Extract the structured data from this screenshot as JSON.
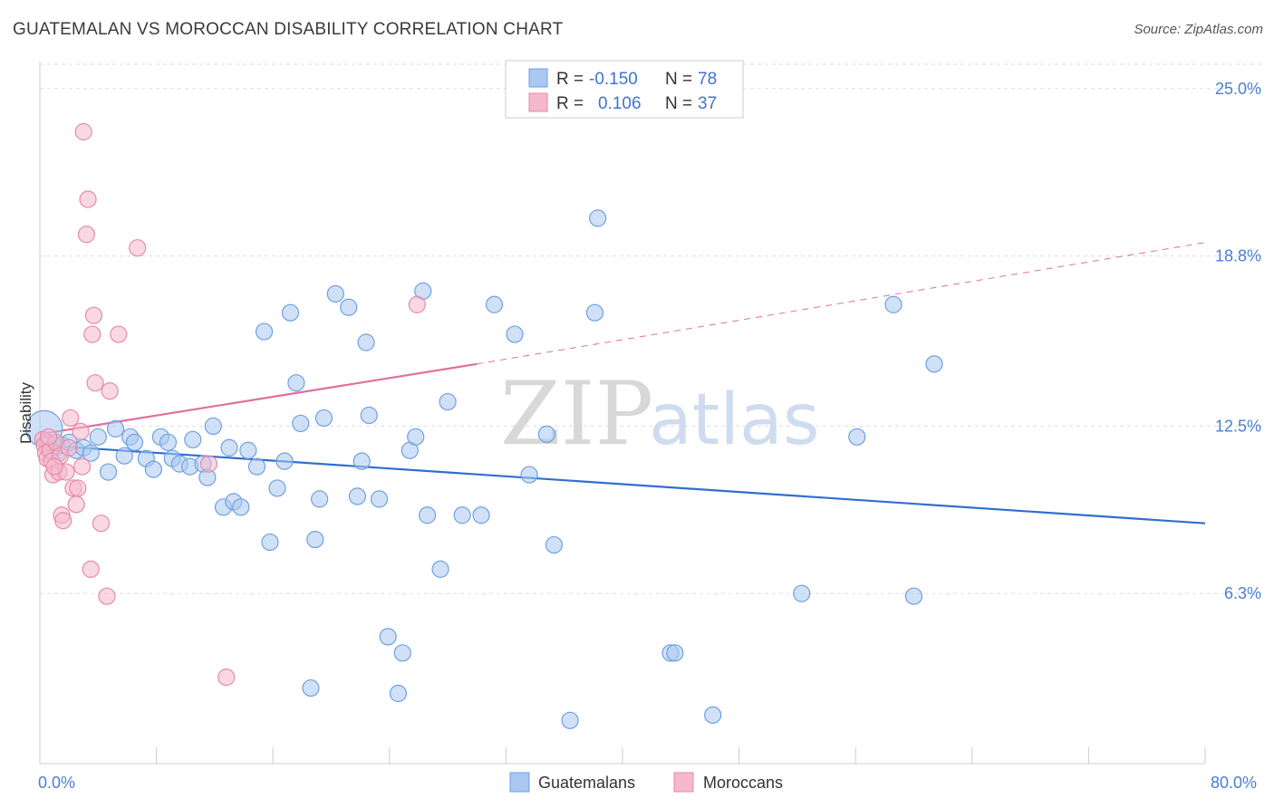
{
  "title": "GUATEMALAN VS MOROCCAN DISABILITY CORRELATION CHART",
  "source": "Source: ZipAtlas.com",
  "watermark": {
    "zip": "ZIP",
    "atlas": "atlas"
  },
  "legend_top": [
    {
      "r_label": "R =",
      "r_value": "-0.150",
      "n_label": "N =",
      "n_value": "78"
    },
    {
      "r_label": "R =",
      "r_value": "0.106",
      "n_label": "N =",
      "n_value": "37"
    }
  ],
  "legend_bottom": [
    "Guatemalans",
    "Moroccans"
  ],
  "colors": {
    "blue_fill": "#aac8f0",
    "blue_stroke": "#6f9fe0",
    "blue_line": "#2f6fcf",
    "pink_fill": "#f5b8cc",
    "pink_stroke": "#e58aa8",
    "pink_line": "#e0709a",
    "tick_label": "#4a7fd4",
    "grid": "#dddddd"
  },
  "chart_data": {
    "type": "scatter",
    "title": "GUATEMALAN VS MOROCCAN DISABILITY CORRELATION CHART",
    "xlabel": "",
    "ylabel": "Disability",
    "xlim": [
      0,
      80
    ],
    "ylim": [
      0,
      26
    ],
    "x_tick_labels": [
      "0.0%",
      "80.0%"
    ],
    "y_ticks": [
      6.3,
      12.5,
      18.8,
      25.0
    ],
    "y_tick_labels": [
      "6.3%",
      "12.5%",
      "18.8%",
      "25.0%"
    ],
    "grid": true,
    "legend_position": "top-center",
    "series": [
      {
        "name": "Guatemalans",
        "r": -0.15,
        "n": 78,
        "trend": {
          "x": [
            0,
            80
          ],
          "y": [
            11.8,
            8.9
          ],
          "style": "solid"
        },
        "points": [
          [
            0.3,
            12.4
          ],
          [
            0.5,
            11.9
          ],
          [
            0.8,
            11.6
          ],
          [
            1.0,
            11.8
          ],
          [
            1.3,
            11.5
          ],
          [
            1.5,
            11.8
          ],
          [
            2.0,
            11.9
          ],
          [
            2.5,
            11.6
          ],
          [
            3.0,
            11.7
          ],
          [
            3.5,
            11.5
          ],
          [
            4.0,
            12.1
          ],
          [
            4.7,
            10.8
          ],
          [
            5.2,
            12.4
          ],
          [
            5.8,
            11.4
          ],
          [
            6.2,
            12.1
          ],
          [
            6.5,
            11.9
          ],
          [
            7.3,
            11.3
          ],
          [
            7.8,
            10.9
          ],
          [
            8.3,
            12.1
          ],
          [
            8.8,
            11.9
          ],
          [
            9.1,
            11.3
          ],
          [
            9.6,
            11.1
          ],
          [
            10.3,
            11.0
          ],
          [
            10.5,
            12.0
          ],
          [
            11.2,
            11.1
          ],
          [
            11.5,
            10.6
          ],
          [
            11.9,
            12.5
          ],
          [
            12.6,
            9.5
          ],
          [
            13.0,
            11.7
          ],
          [
            13.3,
            9.7
          ],
          [
            13.8,
            9.5
          ],
          [
            14.3,
            11.6
          ],
          [
            14.9,
            11.0
          ],
          [
            15.4,
            16.0
          ],
          [
            15.8,
            8.2
          ],
          [
            16.3,
            10.2
          ],
          [
            16.8,
            11.2
          ],
          [
            17.2,
            16.7
          ],
          [
            17.6,
            14.1
          ],
          [
            17.9,
            12.6
          ],
          [
            18.6,
            2.8
          ],
          [
            18.9,
            8.3
          ],
          [
            19.2,
            9.8
          ],
          [
            19.5,
            12.8
          ],
          [
            20.3,
            17.4
          ],
          [
            21.2,
            16.9
          ],
          [
            21.8,
            9.9
          ],
          [
            22.1,
            11.2
          ],
          [
            22.4,
            15.6
          ],
          [
            22.6,
            12.9
          ],
          [
            23.3,
            9.8
          ],
          [
            23.9,
            4.7
          ],
          [
            24.6,
            2.6
          ],
          [
            24.9,
            4.1
          ],
          [
            25.4,
            11.6
          ],
          [
            25.8,
            12.1
          ],
          [
            26.3,
            17.5
          ],
          [
            26.6,
            9.2
          ],
          [
            27.5,
            7.2
          ],
          [
            28.0,
            13.4
          ],
          [
            29.0,
            9.2
          ],
          [
            30.3,
            9.2
          ],
          [
            31.2,
            17.0
          ],
          [
            32.6,
            15.9
          ],
          [
            33.6,
            10.7
          ],
          [
            34.8,
            12.2
          ],
          [
            35.3,
            8.1
          ],
          [
            36.4,
            1.6
          ],
          [
            38.1,
            16.7
          ],
          [
            38.3,
            20.2
          ],
          [
            43.3,
            4.1
          ],
          [
            43.6,
            4.1
          ],
          [
            46.2,
            1.8
          ],
          [
            52.3,
            6.3
          ],
          [
            56.1,
            12.1
          ],
          [
            58.6,
            17.0
          ],
          [
            60.0,
            6.2
          ],
          [
            61.4,
            14.8
          ]
        ]
      },
      {
        "name": "Moroccans",
        "r": 0.106,
        "n": 37,
        "trend": {
          "x": [
            0,
            30
          ],
          "y": [
            12.2,
            14.8
          ],
          "extended_x": [
            80
          ],
          "extended_y": [
            19.3
          ],
          "style": "solid-then-dashed"
        },
        "points": [
          [
            0.2,
            12.0
          ],
          [
            0.3,
            11.8
          ],
          [
            0.4,
            11.5
          ],
          [
            0.5,
            11.3
          ],
          [
            0.7,
            11.6
          ],
          [
            0.8,
            11.2
          ],
          [
            0.9,
            10.7
          ],
          [
            1.1,
            11.9
          ],
          [
            1.3,
            10.8
          ],
          [
            1.4,
            11.4
          ],
          [
            1.5,
            9.2
          ],
          [
            1.6,
            9.0
          ],
          [
            1.8,
            10.8
          ],
          [
            2.0,
            11.7
          ],
          [
            2.1,
            12.8
          ],
          [
            2.3,
            10.2
          ],
          [
            2.5,
            9.6
          ],
          [
            2.6,
            10.2
          ],
          [
            2.8,
            12.3
          ],
          [
            2.9,
            11.0
          ],
          [
            3.0,
            23.4
          ],
          [
            3.2,
            19.6
          ],
          [
            3.3,
            20.9
          ],
          [
            3.5,
            7.2
          ],
          [
            3.6,
            15.9
          ],
          [
            3.7,
            16.6
          ],
          [
            3.8,
            14.1
          ],
          [
            4.2,
            8.9
          ],
          [
            4.6,
            6.2
          ],
          [
            4.8,
            13.8
          ],
          [
            5.4,
            15.9
          ],
          [
            6.7,
            19.1
          ],
          [
            11.6,
            11.1
          ],
          [
            12.8,
            3.2
          ],
          [
            25.9,
            17.0
          ],
          [
            0.6,
            12.1
          ],
          [
            1.0,
            11.0
          ]
        ]
      }
    ]
  }
}
